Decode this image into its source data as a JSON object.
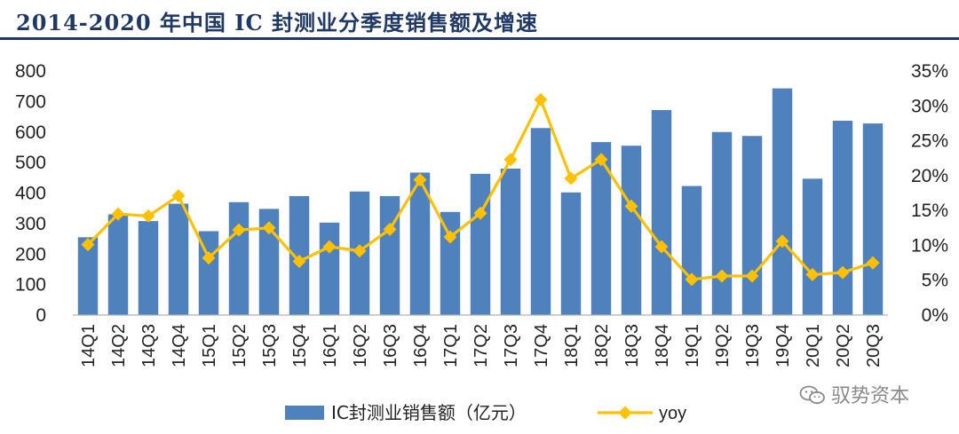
{
  "chart_data": {
    "type": "bar",
    "title": "2014-2020 年中国 IC 封测业分季度销售额及增速",
    "categories": [
      "14Q1",
      "14Q2",
      "14Q3",
      "14Q4",
      "15Q1",
      "15Q2",
      "15Q3",
      "15Q4",
      "16Q1",
      "16Q2",
      "16Q3",
      "16Q4",
      "17Q1",
      "17Q2",
      "17Q3",
      "17Q4",
      "18Q1",
      "18Q2",
      "18Q3",
      "18Q4",
      "19Q1",
      "19Q2",
      "19Q3",
      "19Q4",
      "20Q1",
      "20Q2",
      "20Q3"
    ],
    "series": [
      {
        "name": "IC封测业销售额（亿元）",
        "type": "bar",
        "axis": "left",
        "color": "#4F81BD",
        "values": [
          255,
          330,
          308,
          365,
          275,
          370,
          348,
          390,
          303,
          405,
          390,
          467,
          338,
          463,
          480,
          613,
          402,
          567,
          555,
          672,
          423,
          600,
          587,
          743,
          447,
          637,
          628
        ]
      },
      {
        "name": "yoy",
        "type": "line",
        "axis": "right",
        "color": "#FFC000",
        "values": [
          10.1,
          14.5,
          14.2,
          17.1,
          8.2,
          12.2,
          12.5,
          7.7,
          9.8,
          9.2,
          12.3,
          19.4,
          11.2,
          14.6,
          22.3,
          30.9,
          19.6,
          22.3,
          15.6,
          9.8,
          5.1,
          5.6,
          5.6,
          10.6,
          5.8,
          6.1,
          7.5
        ]
      }
    ],
    "y_left": {
      "min": 0,
      "max": 800,
      "step": 100
    },
    "y_right": {
      "min": 0,
      "max": 35,
      "step": 5,
      "format": "%"
    },
    "legend_position": "bottom",
    "grid": false
  },
  "watermark": {
    "text": "驭势资本",
    "icon": "wechat-icon"
  }
}
